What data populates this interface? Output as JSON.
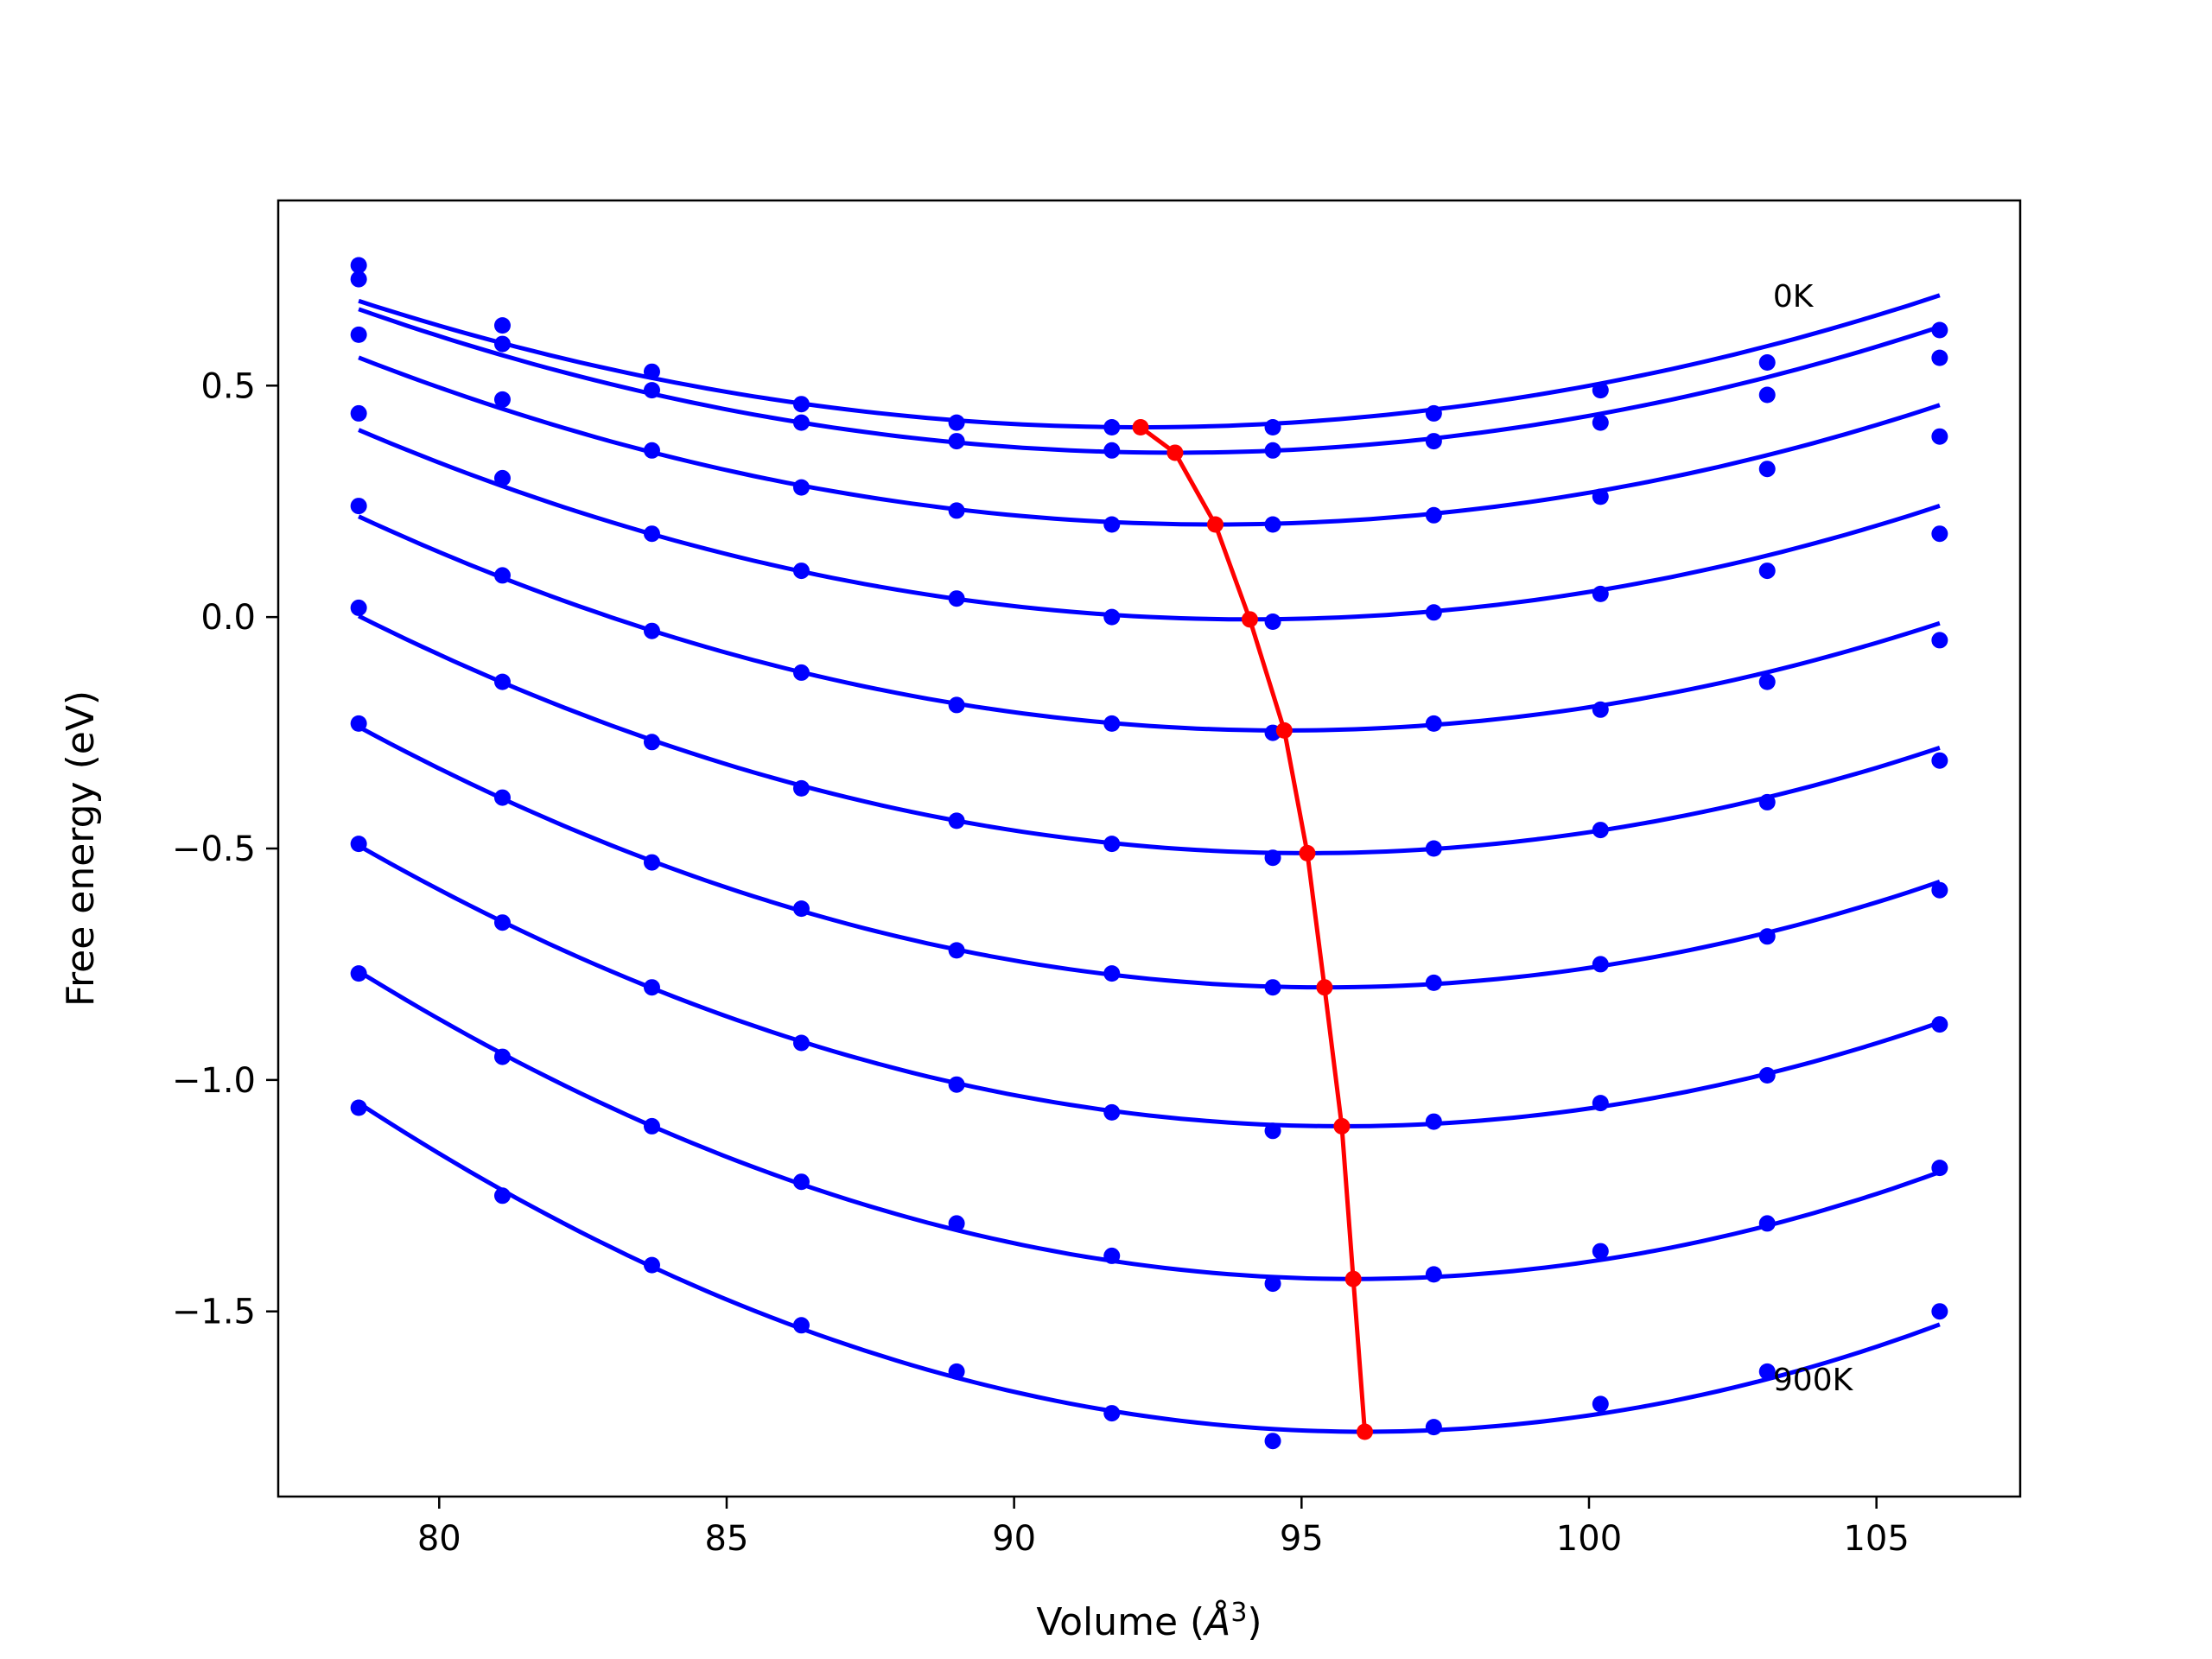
{
  "chart_data": {
    "type": "line",
    "title": "",
    "xlabel": "Volume (",
    "xlabel_symbol": "Å",
    "xlabel_power": "3",
    "xlabel_close": ")",
    "ylabel": "Free energy (eV)",
    "xlim": [
      77.2,
      107.5
    ],
    "ylim": [
      -1.9,
      0.9
    ],
    "xticks": [
      80,
      85,
      90,
      95,
      100,
      105
    ],
    "yticks": [
      0.5,
      0.0,
      -0.5,
      -1.0,
      -1.5
    ],
    "ytick_labels": [
      "0.5",
      "0.0",
      "−0.5",
      "−1.0",
      "−1.5"
    ],
    "grid": false,
    "annotations": [
      {
        "text": "0K",
        "x": 103.2,
        "y": 0.67
      },
      {
        "text": "900K",
        "x": 103.2,
        "y": -1.67
      }
    ],
    "colors": {
      "curves": "#0000ff",
      "minima": "#ff0000"
    },
    "x": [
      78.6,
      81.1,
      83.7,
      86.3,
      89.0,
      91.7,
      94.5,
      97.3,
      100.2,
      103.1,
      106.1
    ],
    "series": [
      {
        "values": [
          0.76,
          0.63,
          0.53,
          0.46,
          0.42,
          0.41,
          0.41,
          0.44,
          0.49,
          0.55,
          0.62
        ],
        "fit_min": [
          92.2,
          0.41
        ]
      },
      {
        "values": [
          0.73,
          0.59,
          0.49,
          0.42,
          0.38,
          0.36,
          0.36,
          0.38,
          0.42,
          0.48,
          0.56
        ],
        "fit_min": [
          92.8,
          0.355
        ]
      },
      {
        "values": [
          0.61,
          0.47,
          0.36,
          0.28,
          0.23,
          0.2,
          0.2,
          0.22,
          0.26,
          0.32,
          0.39
        ],
        "fit_min": [
          93.5,
          0.2
        ]
      },
      {
        "values": [
          0.44,
          0.3,
          0.18,
          0.1,
          0.04,
          0.0,
          -0.01,
          0.01,
          0.05,
          0.1,
          0.18
        ],
        "fit_min": [
          94.1,
          -0.005
        ]
      },
      {
        "values": [
          0.24,
          0.09,
          -0.03,
          -0.12,
          -0.19,
          -0.23,
          -0.25,
          -0.23,
          -0.2,
          -0.14,
          -0.05
        ],
        "fit_min": [
          94.7,
          -0.245
        ]
      },
      {
        "values": [
          0.02,
          -0.14,
          -0.27,
          -0.37,
          -0.44,
          -0.49,
          -0.52,
          -0.5,
          -0.46,
          -0.4,
          -0.31
        ],
        "fit_min": [
          95.1,
          -0.51
        ]
      },
      {
        "values": [
          -0.23,
          -0.39,
          -0.53,
          -0.63,
          -0.72,
          -0.77,
          -0.8,
          -0.79,
          -0.75,
          -0.69,
          -0.59
        ],
        "fit_min": [
          95.4,
          -0.8
        ]
      },
      {
        "values": [
          -0.49,
          -0.66,
          -0.8,
          -0.92,
          -1.01,
          -1.07,
          -1.11,
          -1.09,
          -1.05,
          -0.99,
          -0.88
        ],
        "fit_min": [
          95.7,
          -1.1
        ]
      },
      {
        "values": [
          -0.77,
          -0.95,
          -1.1,
          -1.22,
          -1.31,
          -1.38,
          -1.44,
          -1.42,
          -1.37,
          -1.31,
          -1.19
        ],
        "fit_min": [
          95.9,
          -1.43
        ]
      },
      {
        "values": [
          -1.06,
          -1.25,
          -1.4,
          -1.53,
          -1.63,
          -1.72,
          -1.78,
          -1.75,
          -1.7,
          -1.63,
          -1.5
        ],
        "fit_min": [
          96.1,
          -1.76
        ]
      }
    ]
  }
}
